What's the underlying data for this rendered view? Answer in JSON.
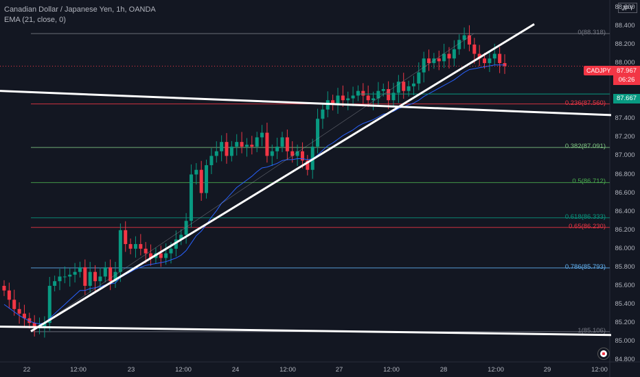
{
  "header": {
    "title": "Canadian Dollar / Japanese Yen, 1h, OANDA",
    "indicator": "EMA (21, close, 0)"
  },
  "currency": "JPY",
  "price_tags": {
    "symbol": "CADJPY",
    "price": "87.967",
    "countdown": "06:26",
    "green_level": "87.667"
  },
  "colors": {
    "background": "#131722",
    "up": "#089981",
    "down": "#f23645",
    "ema": "#2962ff",
    "trendline": "#ffffff",
    "fib_0": "#787b86",
    "fib_0236": "#f23645",
    "fib_0382": "#81c784",
    "fib_05": "#4caf50",
    "fib_0618": "#089981",
    "fib_065": "#f23645",
    "fib_0786": "#64b5f6",
    "fib_1": "#787b86"
  },
  "chart_data": {
    "type": "candlestick",
    "symbol": "CADJPY",
    "timeframe": "1h",
    "y_ticks": [
      "88.600",
      "88.400",
      "88.200",
      "88.000",
      "87.800",
      "87.600",
      "87.400",
      "87.200",
      "87.000",
      "86.800",
      "86.600",
      "86.400",
      "86.200",
      "86.000",
      "85.800",
      "85.600",
      "85.400",
      "85.200",
      "85.000",
      "84.800"
    ],
    "x_ticks": [
      "22",
      "12:00",
      "23",
      "12:00",
      "24",
      "12:00",
      "27",
      "12:00",
      "28",
      "12:00",
      "29",
      "12:00"
    ],
    "ylim": [
      84.78,
      88.68
    ],
    "fib_levels": [
      {
        "label": "0(88.318)",
        "ratio": "0",
        "price": 88.318
      },
      {
        "label": "0.236(87.560)",
        "ratio": "0.236",
        "price": 87.56
      },
      {
        "label": "0.382(87.091)",
        "ratio": "0.382",
        "price": 87.091
      },
      {
        "label": "0.5(86.712)",
        "ratio": "0.5",
        "price": 86.712
      },
      {
        "label": "0.618(86.333)",
        "ratio": "0.618",
        "price": 86.333
      },
      {
        "label": "0.65(86.230)",
        "ratio": "0.65",
        "price": 86.23
      },
      {
        "label": "0.786(85.793)",
        "ratio": "0.786",
        "price": 85.793
      },
      {
        "label": "1(85.106)",
        "ratio": "1",
        "price": 85.106
      }
    ],
    "candles_close": [
      85.55,
      85.45,
      85.35,
      85.3,
      85.25,
      85.2,
      85.15,
      85.15,
      85.2,
      85.6,
      85.65,
      85.7,
      85.7,
      85.72,
      85.75,
      85.8,
      85.6,
      85.75,
      85.65,
      85.7,
      85.8,
      85.65,
      85.75,
      86.2,
      86.05,
      86.0,
      86.05,
      86.0,
      85.95,
      85.9,
      85.95,
      85.9,
      85.95,
      86.0,
      86.1,
      86.15,
      86.3,
      86.8,
      86.85,
      86.6,
      86.9,
      87.0,
      87.05,
      87.15,
      87.0,
      87.1,
      87.15,
      87.1,
      87.12,
      87.1,
      87.2,
      87.25,
      87.0,
      87.05,
      87.1,
      87.2,
      87.05,
      87.0,
      87.05,
      86.95,
      86.85,
      87.1,
      87.4,
      87.5,
      87.6,
      87.55,
      87.65,
      87.6,
      87.62,
      87.65,
      87.7,
      87.65,
      87.6,
      87.62,
      87.7,
      87.72,
      87.6,
      87.68,
      87.8,
      87.7,
      87.75,
      87.78,
      87.9,
      88.05,
      88.0,
      88.05,
      88.02,
      88.1,
      88.05,
      88.15,
      88.25,
      88.3,
      88.2,
      88.1,
      88.05,
      88.0,
      88.05,
      88.1,
      88.0,
      87.967
    ],
    "ema_21": [
      85.4,
      85.36,
      85.32,
      85.28,
      85.25,
      85.22,
      85.2,
      85.19,
      85.2,
      85.25,
      85.3,
      85.35,
      85.4,
      85.45,
      85.5,
      85.55,
      85.55,
      85.57,
      85.58,
      85.59,
      85.61,
      85.62,
      85.63,
      85.69,
      85.72,
      85.75,
      85.78,
      85.8,
      85.82,
      85.83,
      85.84,
      85.85,
      85.86,
      85.88,
      85.9,
      85.93,
      85.98,
      86.06,
      86.14,
      86.19,
      86.26,
      86.34,
      86.41,
      86.49,
      86.54,
      86.6,
      86.66,
      86.7,
      86.74,
      86.78,
      86.83,
      86.87,
      86.88,
      86.9,
      86.92,
      86.95,
      86.96,
      86.96,
      86.97,
      86.97,
      86.96,
      86.97,
      87.01,
      87.06,
      87.11,
      87.14,
      87.18,
      87.22,
      87.25,
      87.28,
      87.32,
      87.35,
      87.37,
      87.39,
      87.42,
      87.45,
      87.46,
      87.48,
      87.51,
      87.53,
      87.55,
      87.57,
      87.6,
      87.64,
      87.67,
      87.7,
      87.73,
      87.76,
      87.79,
      87.82,
      87.86,
      87.9,
      87.93,
      87.94,
      87.95,
      87.96,
      87.97,
      87.98,
      87.98,
      87.98
    ]
  }
}
